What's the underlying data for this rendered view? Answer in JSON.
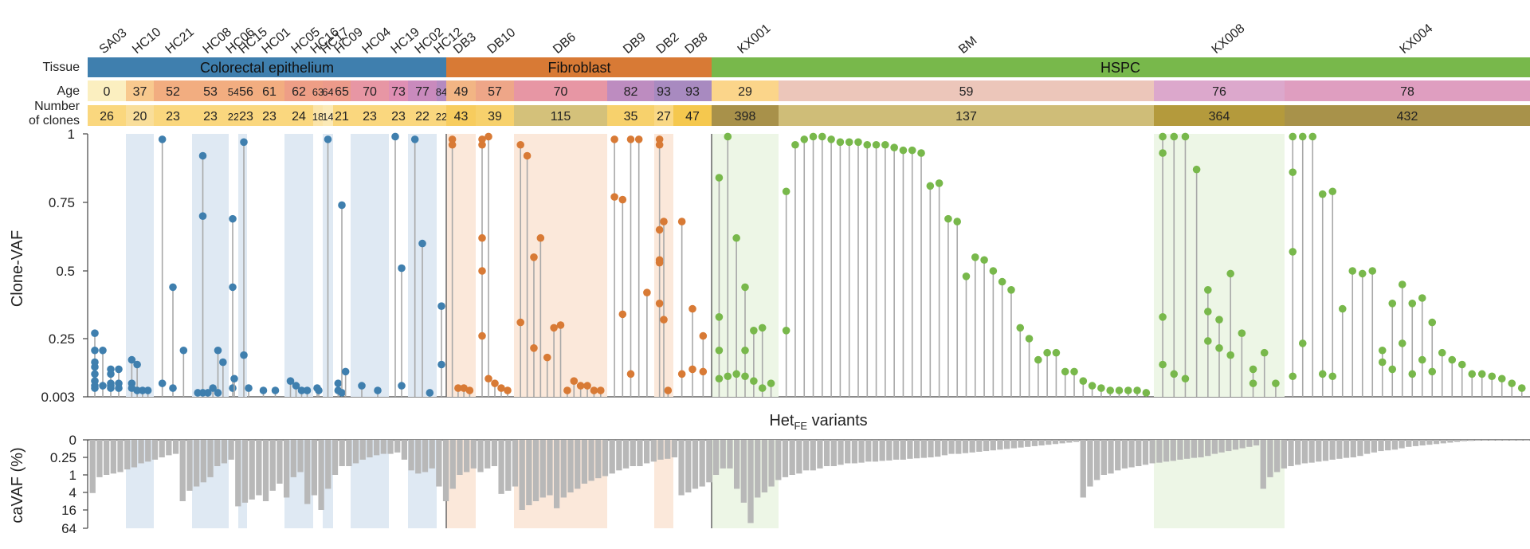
{
  "colors": {
    "epithelium": "#3f7fae",
    "fibroblast": "#d87a35",
    "hspc": "#78b84b",
    "shade_blue": "#dfe9f3",
    "shade_orange": "#fbe8da",
    "shade_green": "#edf6e6",
    "bar_gray": "#b8b8b8",
    "stem_gray": "#a8a8a8",
    "divider": "#666666"
  },
  "row_labels": {
    "tissue": "Tissue",
    "age": "Age",
    "clones_line1": "Number",
    "clones_line2": "of clones"
  },
  "tissues": [
    {
      "label": "Colorectal epithelium",
      "color": "#3f7fae"
    },
    {
      "label": "Fibroblast",
      "color": "#d87a35"
    },
    {
      "label": "HSPC",
      "color": "#78b84b"
    }
  ],
  "samples": [
    {
      "name": "SA03",
      "age": "0",
      "clones": "26",
      "age_color": "#fbefc0",
      "clone_color": "#fad77e"
    },
    {
      "name": "HC10",
      "age": "37",
      "clones": "20",
      "age_color": "#f8c98e",
      "clone_color": "#f9de9a"
    },
    {
      "name": "HC21",
      "age": "52",
      "clones": "23",
      "age_color": "#f2ad80",
      "clone_color": "#fad77e"
    },
    {
      "name": "HC08",
      "age": "53",
      "clones": "23",
      "age_color": "#f2ad80",
      "clone_color": "#fad77e"
    },
    {
      "name": "HC06",
      "age": "54",
      "clones": "22",
      "age_color": "#f2ad80",
      "clone_color": "#fad77e"
    },
    {
      "name": "HC15",
      "age": "56",
      "clones": "23",
      "age_color": "#f2ad80",
      "clone_color": "#fad77e"
    },
    {
      "name": "HC01",
      "age": "61",
      "clones": "23",
      "age_color": "#f2ad80",
      "clone_color": "#fad77e"
    },
    {
      "name": "HC05",
      "age": "62",
      "clones": "24",
      "age_color": "#ee9e86",
      "clone_color": "#fad77e"
    },
    {
      "name": "HC16",
      "age": "63",
      "clones": "18",
      "age_color": "#ee9e86",
      "clone_color": "#fbe4a8"
    },
    {
      "name": "HC17",
      "age": "64",
      "clones": "14",
      "age_color": "#ec9a8a",
      "clone_color": "#fbe9b6"
    },
    {
      "name": "HC09",
      "age": "65",
      "clones": "21",
      "age_color": "#ec9a8a",
      "clone_color": "#fad77e"
    },
    {
      "name": "HC04",
      "age": "70",
      "clones": "23",
      "age_color": "#e796a4",
      "clone_color": "#fad77e"
    },
    {
      "name": "HC19",
      "age": "73",
      "clones": "23",
      "age_color": "#df8fb4",
      "clone_color": "#fad77e"
    },
    {
      "name": "HC02",
      "age": "77",
      "clones": "22",
      "age_color": "#c98abd",
      "clone_color": "#fad77e"
    },
    {
      "name": "HC12",
      "age": "84",
      "clones": "22",
      "age_color": "#b58ac0",
      "clone_color": "#fad77e"
    },
    {
      "name": "DB3",
      "age": "49",
      "clones": "43",
      "age_color": "#f2b584",
      "clone_color": "#f7cc5e"
    },
    {
      "name": "DB10",
      "age": "57",
      "clones": "39",
      "age_color": "#eea688",
      "clone_color": "#f7d16c"
    },
    {
      "name": "DB6",
      "age": "70",
      "clones": "115",
      "age_color": "#e796a4",
      "clone_color": "#d4c17a"
    },
    {
      "name": "DB9",
      "age": "82",
      "clones": "35",
      "age_color": "#bd8cc0",
      "clone_color": "#f7d16c"
    },
    {
      "name": "DB2",
      "age": "93",
      "clones": "27",
      "age_color": "#a88ac0",
      "clone_color": "#f9d885"
    },
    {
      "name": "DB8",
      "age": "93",
      "clones": "47",
      "age_color": "#a88ac0",
      "clone_color": "#f5c84e"
    },
    {
      "name": "KX001",
      "age": "29",
      "clones": "398",
      "age_color": "#fbd58a",
      "clone_color": "#a8914a"
    },
    {
      "name": "BM",
      "age": "59",
      "clones": "137",
      "age_color": "#ecc6ba",
      "clone_color": "#cfbd78"
    },
    {
      "name": "KX008",
      "age": "76",
      "clones": "364",
      "age_color": "#dca8cc",
      "clone_color": "#b49a3c"
    },
    {
      "name": "KX004",
      "age": "78",
      "clones": "432",
      "age_color": "#df9ec0",
      "clone_color": "#a8924a"
    }
  ],
  "axis": {
    "ylabel_top": "Clone-VAF",
    "yticks_top": [
      "0.003",
      "0.25",
      "0.5",
      "0.75",
      "1"
    ],
    "middle_label_main": "Het",
    "middle_label_sub": "FE",
    "middle_label_tail": " variants",
    "ylabel_bottom": "caVAF (%)",
    "yticks_bottom": [
      "0",
      "0.25",
      "1",
      "4",
      "16",
      "64"
    ]
  },
  "chart_data": {
    "type": "lollipop",
    "description_axis_top": "Clone-VAF of HetFE variants per sample",
    "ylim_top": [
      0.003,
      1
    ],
    "series": [
      {
        "sample": "SA03",
        "tissue": "Colorectal epithelium",
        "variants": [
          [
            0.27,
            0.2,
            0.15,
            0.13,
            0.1,
            0.07,
            0.05,
            0.04
          ],
          [
            0.2,
            0.05
          ],
          [
            0.12,
            0.1,
            0.06,
            0.05,
            0.04
          ],
          [
            0.12,
            0.06,
            0.04
          ]
        ]
      },
      {
        "sample": "HC10",
        "tissue": "Colorectal epithelium",
        "variants": [
          [
            0.16,
            0.06,
            0.04
          ],
          [
            0.14,
            0.03
          ],
          [
            0.03
          ],
          [
            0.03
          ]
        ]
      },
      {
        "sample": "HC21",
        "tissue": "Colorectal epithelium",
        "variants": [
          [
            0.98,
            0.06
          ],
          [
            0.44,
            0.04
          ],
          [
            0.2
          ]
        ]
      },
      {
        "sample": "HC08",
        "tissue": "Colorectal epithelium",
        "variants": [
          [
            0.02
          ],
          [
            0.92,
            0.7,
            0.02
          ],
          [
            0.02
          ],
          [
            0.04
          ],
          [
            0.2,
            0.02
          ],
          [
            0.15
          ]
        ]
      },
      {
        "sample": "HC06",
        "tissue": "Colorectal epithelium",
        "variants": [
          [
            0.69,
            0.44,
            0.04
          ],
          [
            0.08
          ]
        ]
      },
      {
        "sample": "HC15",
        "tissue": "Colorectal epithelium",
        "variants": [
          [
            0.97,
            0.18
          ],
          [
            0.04
          ]
        ]
      },
      {
        "sample": "HC01",
        "tissue": "Colorectal epithelium",
        "variants": [
          [
            0.03
          ],
          [
            0.03
          ]
        ]
      },
      {
        "sample": "HC05",
        "tissue": "Colorectal epithelium",
        "variants": [
          [
            0.07
          ],
          [
            0.05
          ],
          [
            0.03
          ],
          [
            0.03
          ]
        ]
      },
      {
        "sample": "HC16",
        "tissue": "Colorectal epithelium",
        "variants": [
          [
            0.04
          ],
          [
            0.03
          ]
        ]
      },
      {
        "sample": "HC17",
        "tissue": "Colorectal epithelium",
        "variants": [
          [
            0.98
          ]
        ]
      },
      {
        "sample": "HC09",
        "tissue": "Colorectal epithelium",
        "variants": [
          [
            0.06,
            0.03
          ],
          [
            0.74,
            0.02
          ],
          [
            0.11
          ]
        ]
      },
      {
        "sample": "HC04",
        "tissue": "Colorectal epithelium",
        "variants": [
          [
            0.05
          ],
          [
            0.03
          ]
        ]
      },
      {
        "sample": "HC19",
        "tissue": "Colorectal epithelium",
        "variants": [
          [
            0.99
          ],
          [
            0.51,
            0.05
          ]
        ]
      },
      {
        "sample": "HC02",
        "tissue": "Colorectal epithelium",
        "variants": [
          [
            0.98
          ],
          [
            0.6
          ],
          [
            0.02
          ]
        ]
      },
      {
        "sample": "HC12",
        "tissue": "Colorectal epithelium",
        "variants": [
          [
            0.37,
            0.14
          ]
        ]
      },
      {
        "sample": "DB3",
        "tissue": "Fibroblast",
        "variants": [
          [
            0.98,
            0.96
          ],
          [
            0.04
          ],
          [
            0.04
          ],
          [
            0.03
          ]
        ]
      },
      {
        "sample": "DB10",
        "tissue": "Fibroblast",
        "variants": [
          [
            0.98,
            0.96,
            0.62,
            0.5,
            0.26
          ],
          [
            0.99,
            0.08
          ],
          [
            0.06
          ],
          [
            0.04
          ],
          [
            0.03
          ]
        ]
      },
      {
        "sample": "DB6",
        "tissue": "Fibroblast",
        "variants": [
          [
            0.96,
            0.31
          ],
          [
            0.92
          ],
          [
            0.55,
            0.21
          ],
          [
            0.62
          ],
          [
            0.17
          ],
          [
            0.29
          ],
          [
            0.3
          ],
          [
            0.03
          ],
          [
            0.07
          ],
          [
            0.05
          ],
          [
            0.05
          ],
          [
            0.03
          ],
          [
            0.03
          ]
        ]
      },
      {
        "sample": "DB9",
        "tissue": "Fibroblast",
        "variants": [
          [
            0.98,
            0.77
          ],
          [
            0.76,
            0.34
          ],
          [
            0.98,
            0.1
          ],
          [
            0.98
          ],
          [
            0.42
          ]
        ]
      },
      {
        "sample": "DB2",
        "tissue": "Fibroblast",
        "variants": [
          [
            0.98,
            0.96,
            0.65,
            0.54,
            0.53,
            0.38
          ],
          [
            0.68,
            0.32
          ],
          [
            0.03
          ]
        ]
      },
      {
        "sample": "DB8",
        "tissue": "Fibroblast",
        "variants": [
          [
            0.68,
            0.1
          ],
          [
            0.36,
            0.12
          ],
          [
            0.26,
            0.11
          ]
        ]
      },
      {
        "sample": "KX001",
        "tissue": "HSPC",
        "variants": [
          [
            0.84,
            0.33,
            0.2,
            0.08
          ],
          [
            0.99,
            0.09
          ],
          [
            0.62,
            0.1
          ],
          [
            0.44,
            0.2,
            0.09
          ],
          [
            0.28,
            0.07
          ],
          [
            0.29,
            0.04
          ],
          [
            0.06
          ]
        ]
      },
      {
        "sample": "BM",
        "tissue": "HSPC",
        "variants": [
          [
            0.79,
            0.28
          ],
          [
            0.96
          ],
          [
            0.98
          ],
          [
            0.99
          ],
          [
            0.99
          ],
          [
            0.98
          ],
          [
            0.97
          ],
          [
            0.97
          ],
          [
            0.97
          ],
          [
            0.96
          ],
          [
            0.96
          ],
          [
            0.96
          ],
          [
            0.95
          ],
          [
            0.94
          ],
          [
            0.94
          ],
          [
            0.93
          ],
          [
            0.81
          ],
          [
            0.82
          ],
          [
            0.69
          ],
          [
            0.68
          ],
          [
            0.48
          ],
          [
            0.55
          ],
          [
            0.54
          ],
          [
            0.5
          ],
          [
            0.46
          ],
          [
            0.43
          ],
          [
            0.29
          ],
          [
            0.25
          ],
          [
            0.16
          ],
          [
            0.19
          ],
          [
            0.19
          ],
          [
            0.11
          ],
          [
            0.11
          ],
          [
            0.07
          ],
          [
            0.05
          ],
          [
            0.04
          ],
          [
            0.03
          ],
          [
            0.03
          ],
          [
            0.03
          ],
          [
            0.03
          ],
          [
            0.02
          ]
        ]
      },
      {
        "sample": "KX008",
        "tissue": "HSPC",
        "variants": [
          [
            0.99,
            0.93,
            0.33,
            0.14
          ],
          [
            0.99,
            0.1
          ],
          [
            0.99,
            0.08
          ],
          [
            0.87
          ],
          [
            0.43,
            0.35,
            0.24
          ],
          [
            0.32,
            0.21
          ],
          [
            0.49,
            0.18
          ],
          [
            0.27
          ],
          [
            0.12,
            0.06
          ],
          [
            0.19
          ],
          [
            0.06
          ]
        ]
      },
      {
        "sample": "KX004",
        "tissue": "HSPC",
        "variants": [
          [
            0.99,
            0.86,
            0.57,
            0.09
          ],
          [
            0.99,
            0.23
          ],
          [
            0.99
          ],
          [
            0.78,
            0.1
          ],
          [
            0.79,
            0.09
          ],
          [
            0.36
          ],
          [
            0.5
          ],
          [
            0.49
          ],
          [
            0.5
          ],
          [
            0.2,
            0.15
          ],
          [
            0.38,
            0.12
          ],
          [
            0.45,
            0.23
          ],
          [
            0.38,
            0.1
          ],
          [
            0.4,
            0.16
          ],
          [
            0.31,
            0.11
          ],
          [
            0.19
          ],
          [
            0.16
          ],
          [
            0.14
          ],
          [
            0.1
          ],
          [
            0.1
          ],
          [
            0.09
          ],
          [
            0.08
          ],
          [
            0.06
          ],
          [
            0.04
          ]
        ]
      }
    ],
    "bottom_panel": {
      "type": "bar",
      "ylabel": "caVAF (%)",
      "scale": "log",
      "ticks": [
        "0",
        "0.25",
        "1",
        "4",
        "16",
        "64"
      ],
      "values": [
        4.2,
        1.2,
        1.0,
        0.9,
        0.8,
        0.65,
        0.55,
        0.4,
        0.35,
        0.3,
        0.25,
        0.22,
        0.2,
        8.0,
        3.5,
        2.5,
        1.8,
        1.2,
        0.5,
        0.4,
        0.3,
        12,
        9,
        7,
        5,
        8,
        3.5,
        2.0,
        6,
        1.2,
        0.8,
        10,
        5,
        16,
        3,
        1,
        0.5,
        0.5,
        0.4,
        0.3,
        0.25,
        0.22,
        0.2,
        0.2,
        0.18,
        0.3,
        0.7,
        0.9,
        0.8,
        0.6,
        2.5,
        8,
        3,
        1,
        0.8,
        0.6,
        0.8,
        0.6,
        0.5,
        4.5,
        3.5,
        2.5,
        16,
        11,
        8,
        6,
        5,
        14,
        6,
        4,
        3,
        2,
        1.6,
        1.3,
        1.1,
        0.9,
        0.7,
        0.6,
        0.5,
        0.5,
        0.4,
        0.35,
        0.3,
        0.28,
        0.25,
        5,
        4,
        3,
        2.5,
        1.8,
        1.0,
        0.6,
        0.6,
        3.0,
        9,
        45,
        6,
        4,
        2.5,
        1.5,
        1.2,
        1.0,
        0.9,
        0.7,
        0.7,
        0.6,
        0.5,
        0.5,
        0.45,
        0.4,
        0.4,
        0.38,
        0.35,
        0.35,
        0.33,
        0.32,
        0.3,
        0.3,
        0.28,
        0.27,
        0.26,
        0.25,
        0.24,
        0.22,
        0.2,
        0.2,
        0.19,
        0.18,
        0.17,
        0.16,
        0.15,
        0.14,
        0.13,
        0.12,
        0.11,
        0.1,
        0.09,
        0.08,
        0.07,
        0.06,
        0.05,
        0.04,
        0.03,
        6,
        2.5,
        1.5,
        1.0,
        0.9,
        0.7,
        0.6,
        0.55,
        0.5,
        0.45,
        0.4,
        0.38,
        0.35,
        0.33,
        0.3,
        0.28,
        0.26,
        0.25,
        0.23,
        0.2,
        0.18,
        0.16,
        0.14,
        0.12,
        0.1,
        0.08,
        3,
        1.2,
        0.8,
        0.6,
        0.5,
        0.45,
        0.4,
        0.38,
        0.35,
        0.33,
        0.3,
        0.28,
        0.26,
        0.25,
        0.23,
        0.2,
        0.18,
        0.16,
        0.15,
        0.14,
        0.12,
        0.1,
        0.09,
        0.08,
        0.07,
        0.06,
        0.05,
        0.04,
        0.03,
        0.02,
        0.015,
        0.012,
        0.01,
        0.008,
        0.006,
        0.005,
        0.004,
        0.003,
        0.002
      ]
    }
  }
}
